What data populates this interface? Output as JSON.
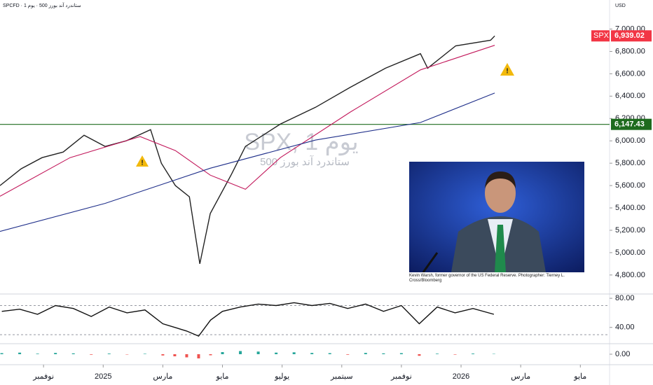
{
  "header": "SPCFD · ستاندرد آند بورز 500 · يوم 1",
  "currency": "USD",
  "photo_caption": "Kevin Warsh, former governor of the US Federal Reserve. Photographer: Tierney L. Cross/Bloomberg",
  "chart_data": [
    {
      "type": "line",
      "watermark": "SPX, 1 يوم",
      "watermark_sub": "ستاندرد آند بورز 500",
      "symbol": "SPX",
      "last": {
        "value": 6939.02,
        "label": "6,939.02"
      },
      "hline": {
        "value": 6147.43,
        "label": "6,147.43",
        "color": "#1e6b1e"
      },
      "xlim": [
        9.54,
        29.98
      ],
      "ylim": [
        4630,
        7260
      ],
      "xticks": [
        {
          "value": 11,
          "label": "نوفمبر"
        },
        {
          "value": 13,
          "label": "2025"
        },
        {
          "value": 15,
          "label": "مارس"
        },
        {
          "value": 17,
          "label": "مايو"
        },
        {
          "value": 19,
          "label": "يوليو"
        },
        {
          "value": 21,
          "label": "سبتمبر"
        },
        {
          "value": 23,
          "label": "نوفمبر"
        },
        {
          "value": 25,
          "label": "2026"
        },
        {
          "value": 27,
          "label": "مارس"
        },
        {
          "value": 29,
          "label": "مايو"
        }
      ],
      "yticks": [
        {
          "value": 7000,
          "label": "7,000.00"
        },
        {
          "value": 6800,
          "label": "6,800.00"
        },
        {
          "value": 6600,
          "label": "6,600.00"
        },
        {
          "value": 6400,
          "label": "6,400.00"
        },
        {
          "value": 6200,
          "label": "6,200.00"
        },
        {
          "value": 6000,
          "label": "6,000.00"
        },
        {
          "value": 5800,
          "label": "5,800.00"
        },
        {
          "value": 5600,
          "label": "5,600.00"
        },
        {
          "value": 5400,
          "label": "5,400.00"
        },
        {
          "value": 5200,
          "label": "5,200.00"
        },
        {
          "value": 5000,
          "label": "5,000.00"
        },
        {
          "value": 4800,
          "label": "4,800.00"
        }
      ],
      "series": [
        {
          "color": "#222222",
          "x": [
            9.54,
            10.25,
            10.95,
            11.66,
            12.36,
            13.07,
            13.77,
            14.59,
            14.95,
            15.42,
            15.89,
            16.24,
            16.59,
            17.3,
            17.77,
            18.94,
            20.12,
            21.29,
            22.47,
            23.64,
            23.88,
            24.82,
            25.99,
            26.13
          ],
          "values": [
            5600,
            5750,
            5850,
            5900,
            6050,
            5950,
            6000,
            6100,
            5800,
            5600,
            5500,
            4900,
            5350,
            5700,
            5950,
            6150,
            6300,
            6480,
            6650,
            6780,
            6650,
            6850,
            6900,
            6939
          ]
        },
        {
          "color": "#c2185b",
          "x": [
            9.54,
            11.89,
            14.24,
            15.42,
            16.59,
            17.77,
            18.94,
            21.29,
            23.64,
            26.13
          ],
          "values": [
            5504,
            5850,
            6038,
            5913,
            5693,
            5567,
            5850,
            6258,
            6635,
            6855
          ]
        },
        {
          "color": "#1f2f8a",
          "x": [
            9.54,
            13.07,
            16.59,
            20.12,
            23.64,
            26.13
          ],
          "values": [
            5190,
            5441,
            5755,
            6007,
            6164,
            6428
          ]
        }
      ]
    },
    {
      "type": "line",
      "xlim": [
        9.54,
        29.98
      ],
      "ylim": [
        17.6,
        85.9
      ],
      "yticks": [
        {
          "value": 80,
          "label": "80.00"
        },
        {
          "value": 40,
          "label": "40.00"
        }
      ],
      "levels": [
        70,
        30
      ],
      "series": [
        {
          "color": "#111111",
          "x": [
            9.6,
            10.2,
            10.8,
            11.4,
            12.0,
            12.6,
            13.2,
            13.8,
            14.4,
            15.0,
            15.4,
            15.8,
            16.2,
            16.6,
            17.0,
            17.6,
            18.2,
            18.8,
            19.4,
            20.0,
            20.6,
            21.2,
            21.8,
            22.4,
            23.0,
            23.6,
            24.2,
            24.8,
            25.4,
            26.1
          ],
          "values": [
            62,
            65,
            58,
            70,
            66,
            55,
            68,
            60,
            64,
            45,
            40,
            35,
            28,
            50,
            62,
            68,
            72,
            70,
            74,
            70,
            73,
            66,
            72,
            62,
            70,
            45,
            68,
            60,
            66,
            58
          ]
        }
      ]
    },
    {
      "type": "bar",
      "xlim": [
        9.54,
        29.98
      ],
      "ylim": [
        -100,
        100
      ],
      "yticks": [
        {
          "value": 0,
          "label": "0.00"
        }
      ],
      "color": "#26a69a",
      "negative_color": "#ef5350",
      "x": [
        9.6,
        10.2,
        10.8,
        11.4,
        12.0,
        12.6,
        13.2,
        13.8,
        14.4,
        15.0,
        15.4,
        15.8,
        16.2,
        16.6,
        17.0,
        17.6,
        18.2,
        18.8,
        19.4,
        20.0,
        20.6,
        21.2,
        21.8,
        22.4,
        23.0,
        23.6,
        24.2,
        24.8,
        25.4,
        26.1
      ],
      "values": [
        10,
        15,
        5,
        12,
        8,
        -5,
        6,
        -3,
        4,
        -12,
        -20,
        -30,
        -40,
        -10,
        20,
        30,
        25,
        15,
        18,
        12,
        10,
        -5,
        12,
        8,
        10,
        -15,
        5,
        -4,
        6,
        3
      ]
    }
  ]
}
